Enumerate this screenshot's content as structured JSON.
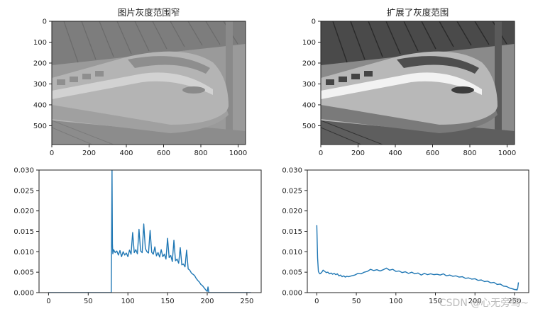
{
  "chart_data": [
    {
      "type": "image",
      "title": "图片灰度范围窄",
      "image": "grayscale photo of a high-speed train at a station, low contrast",
      "xlim": [
        0,
        1040
      ],
      "ylim": [
        590,
        0
      ],
      "xticks": [
        0,
        200,
        400,
        600,
        800,
        1000
      ],
      "yticks": [
        0,
        100,
        200,
        300,
        400,
        500
      ]
    },
    {
      "type": "image",
      "title": "扩展了灰度范围",
      "image": "grayscale photo of a high-speed train at a station, contrast stretched",
      "xlim": [
        0,
        1040
      ],
      "ylim": [
        590,
        0
      ],
      "xticks": [
        0,
        200,
        400,
        600,
        800,
        1000
      ],
      "yticks": [
        0,
        100,
        200,
        300,
        400,
        500
      ]
    },
    {
      "type": "line",
      "title": "",
      "xlim": [
        -12,
        268
      ],
      "ylim": [
        0,
        0.03
      ],
      "xticks": [
        0,
        50,
        100,
        150,
        200,
        250
      ],
      "yticks": [
        "0.000",
        "0.005",
        "0.010",
        "0.015",
        "0.020",
        "0.025",
        "0.030"
      ],
      "series": [
        {
          "x": [
            0,
            79,
            80,
            80.5,
            81,
            82,
            84,
            86,
            88,
            90,
            92,
            94,
            96,
            98,
            100,
            102,
            104,
            106,
            108,
            110,
            112,
            114,
            116,
            118,
            120,
            122,
            124,
            126,
            128,
            130,
            132,
            134,
            136,
            138,
            140,
            142,
            144,
            146,
            148,
            150,
            152,
            154,
            156,
            158,
            160,
            162,
            164,
            166,
            168,
            170,
            172,
            174,
            176,
            178,
            180,
            182,
            184,
            186,
            188,
            190,
            192,
            194,
            196,
            198,
            200,
            201,
            202,
            210,
            255
          ],
          "y": [
            0,
            0,
            0.03,
            0.012,
            0.0095,
            0.0105,
            0.0098,
            0.0102,
            0.0092,
            0.0103,
            0.0088,
            0.01,
            0.0092,
            0.0097,
            0.0088,
            0.0104,
            0.0094,
            0.0147,
            0.0098,
            0.0105,
            0.0095,
            0.0155,
            0.0102,
            0.0098,
            0.0168,
            0.0108,
            0.01,
            0.0097,
            0.0152,
            0.0099,
            0.0094,
            0.0112,
            0.009,
            0.0098,
            0.0087,
            0.0105,
            0.0088,
            0.0094,
            0.0082,
            0.0133,
            0.0086,
            0.0091,
            0.0076,
            0.0128,
            0.0078,
            0.0082,
            0.0072,
            0.011,
            0.0068,
            0.007,
            0.0063,
            0.0104,
            0.0058,
            0.0055,
            0.0048,
            0.0045,
            0.0042,
            0.0035,
            0.003,
            0.0026,
            0.002,
            0.0017,
            0.0012,
            0.0007,
            0.0003,
            0.0014,
            0,
            0,
            0
          ]
        }
      ]
    },
    {
      "type": "line",
      "title": "",
      "xlim": [
        -12,
        268
      ],
      "ylim": [
        0,
        0.03
      ],
      "xticks": [
        0,
        50,
        100,
        150,
        200,
        250
      ],
      "yticks": [
        "0.000",
        "0.005",
        "0.010",
        "0.015",
        "0.020",
        "0.025",
        "0.030"
      ],
      "series": [
        {
          "x": [
            0,
            1,
            2,
            3,
            4,
            6,
            8,
            10,
            12,
            14,
            16,
            18,
            20,
            22,
            24,
            26,
            28,
            30,
            32,
            34,
            36,
            38,
            40,
            44,
            48,
            52,
            56,
            60,
            64,
            68,
            72,
            76,
            80,
            84,
            88,
            92,
            96,
            100,
            104,
            108,
            112,
            116,
            120,
            124,
            128,
            132,
            136,
            140,
            144,
            148,
            152,
            156,
            160,
            164,
            168,
            172,
            176,
            180,
            184,
            188,
            192,
            196,
            200,
            204,
            208,
            212,
            216,
            220,
            224,
            228,
            232,
            236,
            240,
            244,
            248,
            251,
            252,
            253,
            254,
            255
          ],
          "y": [
            0.0165,
            0.0085,
            0.0052,
            0.0048,
            0.0046,
            0.0049,
            0.0055,
            0.0052,
            0.0049,
            0.005,
            0.0046,
            0.0048,
            0.0045,
            0.0047,
            0.0044,
            0.0046,
            0.0041,
            0.0043,
            0.0039,
            0.0041,
            0.0038,
            0.004,
            0.0039,
            0.0041,
            0.0043,
            0.0047,
            0.0046,
            0.005,
            0.0052,
            0.0057,
            0.0054,
            0.0056,
            0.0053,
            0.0056,
            0.006,
            0.0055,
            0.0057,
            0.0052,
            0.0053,
            0.0049,
            0.0051,
            0.0047,
            0.005,
            0.0046,
            0.0048,
            0.0043,
            0.0047,
            0.0044,
            0.0046,
            0.0044,
            0.0045,
            0.0043,
            0.0046,
            0.0041,
            0.0043,
            0.004,
            0.0041,
            0.0038,
            0.0039,
            0.0035,
            0.0036,
            0.0033,
            0.0034,
            0.003,
            0.0031,
            0.0027,
            0.0028,
            0.0024,
            0.0025,
            0.002,
            0.0021,
            0.0016,
            0.0015,
            0.0011,
            0.0009,
            0.0007,
            0.0008,
            0.0006,
            0.001,
            0.0025
          ]
        }
      ]
    }
  ],
  "watermark": "CSDN @心无旁骛~"
}
